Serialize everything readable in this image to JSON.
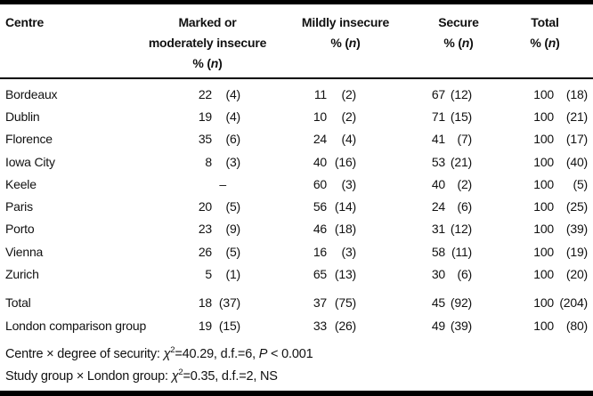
{
  "table": {
    "header": {
      "columns": [
        {
          "title": "Centre"
        },
        {
          "title": "Marked or",
          "title2": "moderately insecure"
        },
        {
          "title": "Mildly insecure"
        },
        {
          "title": "Secure"
        },
        {
          "title": "Total"
        }
      ],
      "unit": {
        "pre": "% (",
        "n": "n",
        "post": ")"
      }
    },
    "rows": [
      {
        "centre": "Bordeaux",
        "marked": {
          "pct": "22",
          "n": "(4)"
        },
        "mild": {
          "pct": "11",
          "n": "(2)"
        },
        "secure": {
          "pct": "67",
          "n": "(12)"
        },
        "total": {
          "pct": "100",
          "n": "(18)"
        }
      },
      {
        "centre": "Dublin",
        "marked": {
          "pct": "19",
          "n": "(4)"
        },
        "mild": {
          "pct": "10",
          "n": "(2)"
        },
        "secure": {
          "pct": "71",
          "n": "(15)"
        },
        "total": {
          "pct": "100",
          "n": "(21)"
        }
      },
      {
        "centre": "Florence",
        "marked": {
          "pct": "35",
          "n": "(6)"
        },
        "mild": {
          "pct": "24",
          "n": "(4)"
        },
        "secure": {
          "pct": "41",
          "n": "(7)"
        },
        "total": {
          "pct": "100",
          "n": "(17)"
        }
      },
      {
        "centre": "Iowa City",
        "marked": {
          "pct": "8",
          "n": "(3)"
        },
        "mild": {
          "pct": "40",
          "n": "(16)"
        },
        "secure": {
          "pct": "53",
          "n": "(21)"
        },
        "total": {
          "pct": "100",
          "n": "(40)"
        }
      },
      {
        "centre": "Keele",
        "marked": {
          "pct": "–",
          "n": ""
        },
        "mild": {
          "pct": "60",
          "n": "(3)"
        },
        "secure": {
          "pct": "40",
          "n": "(2)"
        },
        "total": {
          "pct": "100",
          "n": "(5)"
        }
      },
      {
        "centre": "Paris",
        "marked": {
          "pct": "20",
          "n": "(5)"
        },
        "mild": {
          "pct": "56",
          "n": "(14)"
        },
        "secure": {
          "pct": "24",
          "n": "(6)"
        },
        "total": {
          "pct": "100",
          "n": "(25)"
        }
      },
      {
        "centre": "Porto",
        "marked": {
          "pct": "23",
          "n": "(9)"
        },
        "mild": {
          "pct": "46",
          "n": "(18)"
        },
        "secure": {
          "pct": "31",
          "n": "(12)"
        },
        "total": {
          "pct": "100",
          "n": "(39)"
        }
      },
      {
        "centre": "Vienna",
        "marked": {
          "pct": "26",
          "n": "(5)"
        },
        "mild": {
          "pct": "16",
          "n": "(3)"
        },
        "secure": {
          "pct": "58",
          "n": "(11)"
        },
        "total": {
          "pct": "100",
          "n": "(19)"
        }
      },
      {
        "centre": "Zurich",
        "marked": {
          "pct": "5",
          "n": "(1)"
        },
        "mild": {
          "pct": "65",
          "n": "(13)"
        },
        "secure": {
          "pct": "30",
          "n": "(6)"
        },
        "total": {
          "pct": "100",
          "n": "(20)"
        }
      }
    ],
    "summary_rows": [
      {
        "centre": "Total",
        "marked": {
          "pct": "18",
          "n": "(37)"
        },
        "mild": {
          "pct": "37",
          "n": "(75)"
        },
        "secure": {
          "pct": "45",
          "n": "(92)"
        },
        "total": {
          "pct": "100",
          "n": "(204)"
        }
      },
      {
        "centre": "London comparison group",
        "marked": {
          "pct": "19",
          "n": "(15)"
        },
        "mild": {
          "pct": "33",
          "n": "(26)"
        },
        "secure": {
          "pct": "49",
          "n": "(39)"
        },
        "total": {
          "pct": "100",
          "n": "(80)"
        }
      }
    ]
  },
  "footnotes": [
    {
      "prefix": "Centre × degree of security: ",
      "chi": "χ",
      "sup": "2",
      "mid": "=40.29, d.f.=6, ",
      "p": "P",
      "tail": " < 0.001"
    },
    {
      "prefix": "Study group × London group: ",
      "chi": "χ",
      "sup": "2",
      "mid": "=0.35, d.f.=2, NS",
      "p": "",
      "tail": ""
    }
  ],
  "colors": {
    "text": "#111111",
    "border": "#000000",
    "background": "#ffffff"
  }
}
